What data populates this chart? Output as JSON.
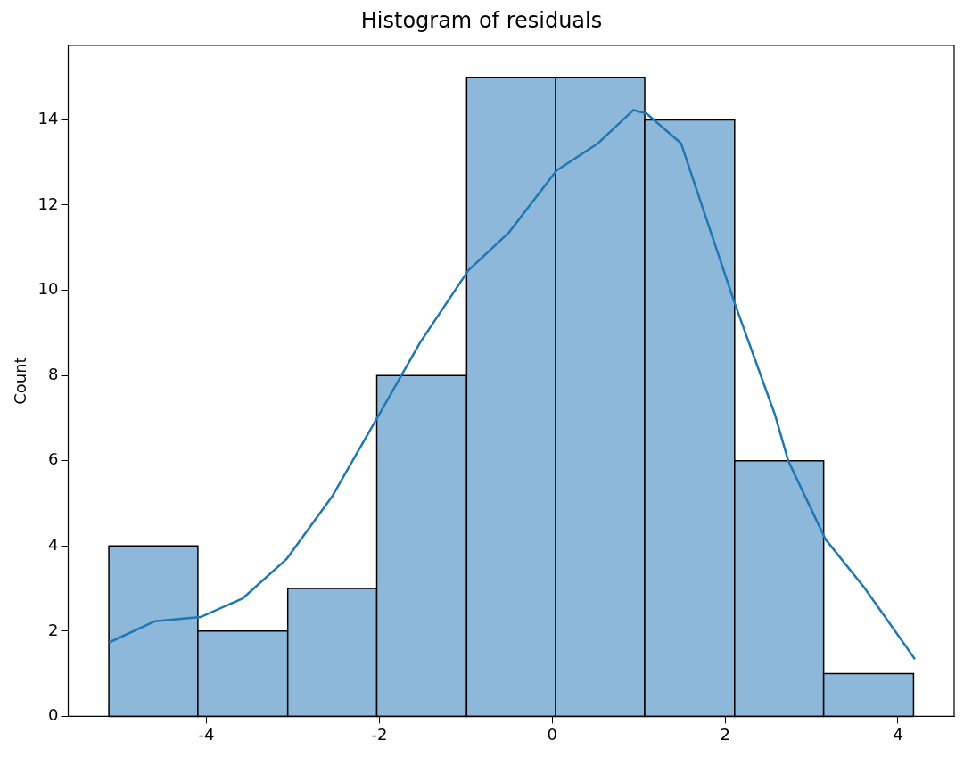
{
  "chart_data": {
    "type": "histogram",
    "title": "Histogram of residuals",
    "ylabel": "Count",
    "bins": [
      -5.13,
      -4.1,
      -3.06,
      -2.03,
      -0.99,
      0.04,
      1.07,
      2.11,
      3.14,
      4.18
    ],
    "values": [
      4,
      2,
      3,
      8,
      15,
      15,
      14,
      6,
      1
    ],
    "color": "#8db8da",
    "series": [
      {
        "type": "line",
        "color": "#1f77b4",
        "x": [
          -5.12,
          -4.6,
          -4.07,
          -3.58,
          -3.07,
          -2.55,
          -2.01,
          -1.53,
          -0.97,
          -0.5,
          0.05,
          0.53,
          0.94,
          1.09,
          1.49,
          2.11,
          2.58,
          2.73,
          3.16,
          3.61,
          4.19
        ],
        "values": [
          1.74,
          2.23,
          2.33,
          2.77,
          3.7,
          5.15,
          7.06,
          8.77,
          10.47,
          11.36,
          12.81,
          13.45,
          14.23,
          14.15,
          13.45,
          9.7,
          7.06,
          6.0,
          4.16,
          3.02,
          1.36
        ]
      }
    ],
    "xlim": [
      -5.6,
      4.65
    ],
    "xticks": [
      -4,
      -2,
      0,
      2,
      4
    ],
    "ylim": [
      0,
      15.75
    ],
    "yticks": [
      0,
      2,
      4,
      6,
      8,
      10,
      12,
      14
    ],
    "grid": false,
    "legend": false
  }
}
